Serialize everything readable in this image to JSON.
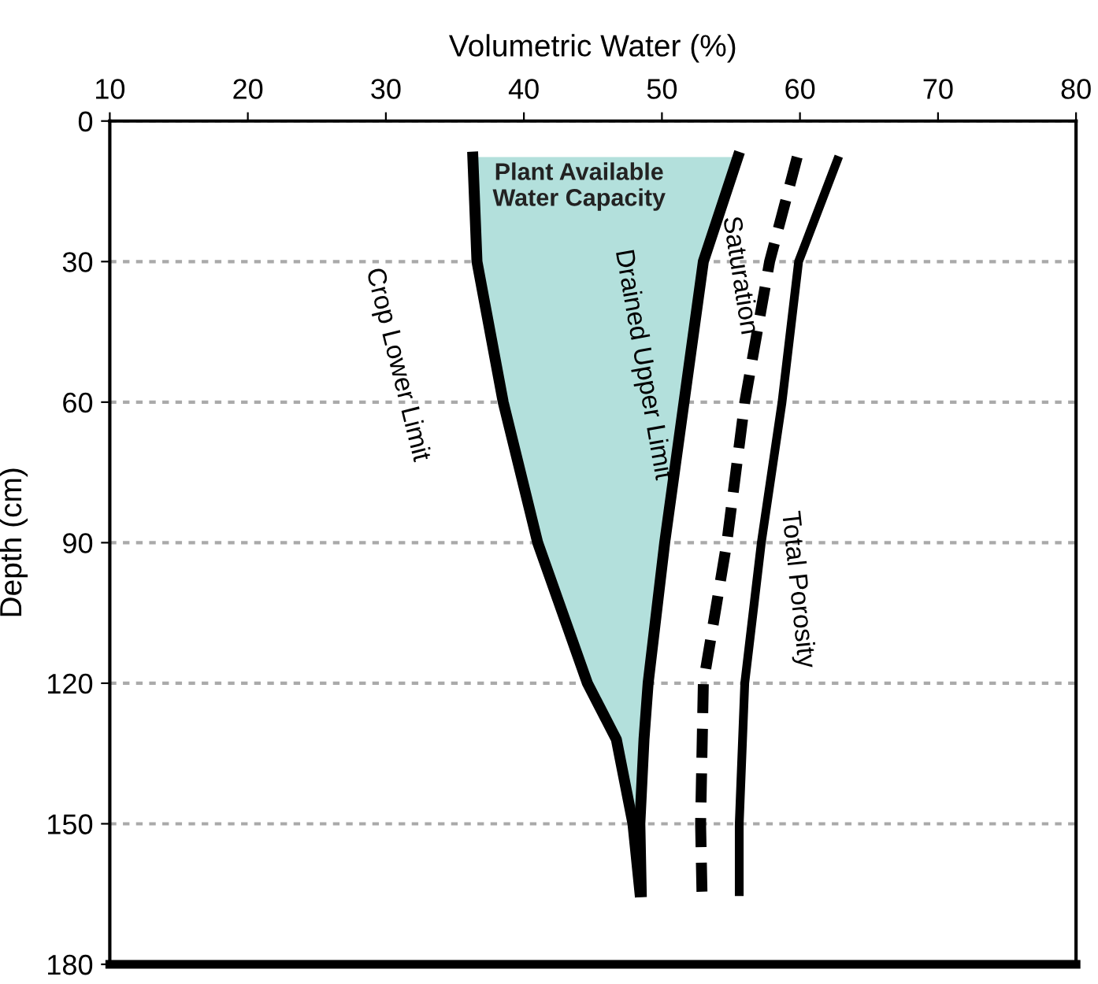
{
  "chart_data": {
    "type": "line",
    "xlabel": "Volumetric Water (%)",
    "ylabel": "Depth (cm)",
    "xlim": [
      10,
      80
    ],
    "xticks": [
      10,
      20,
      30,
      40,
      50,
      60,
      70,
      80
    ],
    "ylim": [
      180,
      0
    ],
    "yticks": [
      0,
      30,
      60,
      90,
      120,
      150,
      180
    ],
    "grid": "y",
    "marker": "none",
    "series": [
      {
        "name": "Crop Lower Limit",
        "color": "#000000",
        "line_style": "solid",
        "x": [
          36.3,
          36.6,
          38.5,
          41.0,
          44.6,
          46.7,
          47.9,
          48.4
        ],
        "values": [
          7.7,
          30,
          60,
          90,
          120,
          132,
          150,
          164.5
        ]
      },
      {
        "name": "Drained Upper Limit",
        "color": "#000000",
        "line_style": "solid",
        "x": [
          55.5,
          53.0,
          51.6,
          50.2,
          49.0,
          48.7,
          48.4,
          48.5
        ],
        "values": [
          7.7,
          30,
          60,
          90,
          120,
          132,
          150,
          164.5
        ]
      },
      {
        "name": "Saturation",
        "color": "#000000",
        "line_style": "dashed",
        "x": [
          59.8,
          57.8,
          56.0,
          54.7,
          53.0,
          52.8,
          52.9
        ],
        "values": [
          7.7,
          30,
          60,
          90,
          120,
          150,
          164.5
        ]
      },
      {
        "name": "Total Porosity",
        "color": "#000000",
        "line_style": "solid",
        "x": [
          62.7,
          59.9,
          58.7,
          57.2,
          56.0,
          55.6,
          55.6
        ],
        "values": [
          8.4,
          30,
          60,
          90,
          120,
          150,
          164.5
        ]
      }
    ],
    "annotations": [
      "Plant Available\nWater Capacity"
    ]
  }
}
